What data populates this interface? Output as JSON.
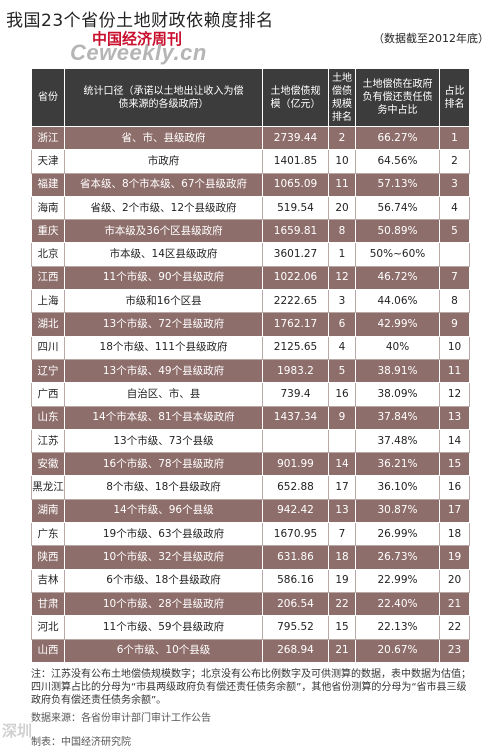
{
  "header": {
    "title": "我国23个省份土地财政依赖度排名",
    "subtitle": "（数据截至2012年底）",
    "brand_name": "中国经济周刊",
    "brand_url": "Ceweekly.cn"
  },
  "table": {
    "headers": [
      "省份",
      "统计口径（承诺以土地出让收入为偿债来源的各级政府）",
      "土地偿债规模（亿元）",
      "土地偿债规模排名",
      "土地偿债在政府负有偿还责任债务中占比",
      "占比排名"
    ],
    "rows": [
      {
        "province": "浙江",
        "scope": "省、市、县级政府",
        "amount": "2739.44",
        "amount_rank": "2",
        "ratio": "66.27%",
        "ratio_rank": "1"
      },
      {
        "province": "天津",
        "scope": "市政府",
        "amount": "1401.85",
        "amount_rank": "10",
        "ratio": "64.56%",
        "ratio_rank": "2"
      },
      {
        "province": "福建",
        "scope": "省本级、8个市本级、67个县级政府",
        "amount": "1065.09",
        "amount_rank": "11",
        "ratio": "57.13%",
        "ratio_rank": "3"
      },
      {
        "province": "海南",
        "scope": "省级、2个市级、12个县级政府",
        "amount": "519.54",
        "amount_rank": "20",
        "ratio": "56.74%",
        "ratio_rank": "4"
      },
      {
        "province": "重庆",
        "scope": "市本级及36个区县级政府",
        "amount": "1659.81",
        "amount_rank": "8",
        "ratio": "50.89%",
        "ratio_rank": "5"
      },
      {
        "province": "北京",
        "scope": "市本级、14区县级政府",
        "amount": "3601.27",
        "amount_rank": "1",
        "ratio": "50%~60%",
        "ratio_rank": ""
      },
      {
        "province": "江西",
        "scope": "11个市级、90个县级政府",
        "amount": "1022.06",
        "amount_rank": "12",
        "ratio": "46.72%",
        "ratio_rank": "7"
      },
      {
        "province": "上海",
        "scope": "市级和16个区县",
        "amount": "2222.65",
        "amount_rank": "3",
        "ratio": "44.06%",
        "ratio_rank": "8"
      },
      {
        "province": "湖北",
        "scope": "13个市级、72个县级政府",
        "amount": "1762.17",
        "amount_rank": "6",
        "ratio": "42.99%",
        "ratio_rank": "9"
      },
      {
        "province": "四川",
        "scope": "18个市级、111个县级政府",
        "amount": "2125.65",
        "amount_rank": "4",
        "ratio": "40%",
        "ratio_rank": "10"
      },
      {
        "province": "辽宁",
        "scope": "13个市级、49个县级政府",
        "amount": "1983.2",
        "amount_rank": "5",
        "ratio": "38.91%",
        "ratio_rank": "11"
      },
      {
        "province": "广西",
        "scope": "自治区、市、县",
        "amount": "739.4",
        "amount_rank": "16",
        "ratio": "38.09%",
        "ratio_rank": "12"
      },
      {
        "province": "山东",
        "scope": "14个市本级、81个县本级政府",
        "amount": "1437.34",
        "amount_rank": "9",
        "ratio": "37.84%",
        "ratio_rank": "13"
      },
      {
        "province": "江苏",
        "scope": "13个市级、73个县级",
        "amount": "",
        "amount_rank": "",
        "ratio": "37.48%",
        "ratio_rank": "14"
      },
      {
        "province": "安徽",
        "scope": "16个市级、78个县级政府",
        "amount": "901.99",
        "amount_rank": "14",
        "ratio": "36.21%",
        "ratio_rank": "15"
      },
      {
        "province": "黑龙江",
        "scope": "8个市级、18个县级政府",
        "amount": "652.88",
        "amount_rank": "17",
        "ratio": "36.10%",
        "ratio_rank": "16"
      },
      {
        "province": "湖南",
        "scope": "14个市级、96个县级",
        "amount": "942.42",
        "amount_rank": "13",
        "ratio": "30.87%",
        "ratio_rank": "17"
      },
      {
        "province": "广东",
        "scope": "19个市级、63个县级政府",
        "amount": "1670.95",
        "amount_rank": "7",
        "ratio": "26.99%",
        "ratio_rank": "18"
      },
      {
        "province": "陕西",
        "scope": "10个市级、32个县级政府",
        "amount": "631.86",
        "amount_rank": "18",
        "ratio": "26.73%",
        "ratio_rank": "19"
      },
      {
        "province": "吉林",
        "scope": "6个市级、18个县级政府",
        "amount": "586.16",
        "amount_rank": "19",
        "ratio": "22.99%",
        "ratio_rank": "20"
      },
      {
        "province": "甘肃",
        "scope": "10个市级、28个县级政府",
        "amount": "206.54",
        "amount_rank": "22",
        "ratio": "22.40%",
        "ratio_rank": "21"
      },
      {
        "province": "河北",
        "scope": "11个市级、59个县级政府",
        "amount": "795.52",
        "amount_rank": "15",
        "ratio": "22.13%",
        "ratio_rank": "22"
      },
      {
        "province": "山西",
        "scope": "6个市级、10个县级",
        "amount": "268.94",
        "amount_rank": "21",
        "ratio": "20.67%",
        "ratio_rank": "23"
      }
    ]
  },
  "footer": {
    "note": "注：江苏没有公布土地偿债规模数字；北京没有公布比例数字及可供测算的数据，表中数据为估值；四川测算占比的分母为“市县两级政府负有偿还责任债务余额”，其他省份测算的分母为“省市县三级政府负有偿还责任债务余额”。",
    "source": "数据来源：各省份审计部门审计工作公告",
    "producer": "制表：中国经济研究院",
    "corner_watermark": "深圳"
  }
}
